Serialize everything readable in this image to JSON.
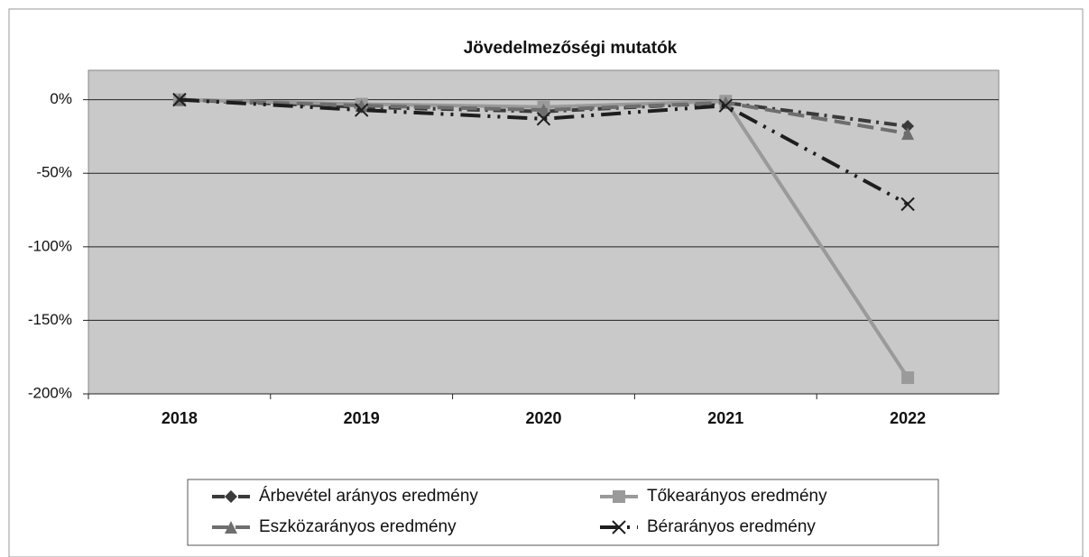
{
  "chart_data": {
    "type": "line",
    "title": "Jövedelmezőségi mutatók",
    "categories": [
      "2018",
      "2019",
      "2020",
      "2021",
      "2022"
    ],
    "series": [
      {
        "name": "Árbevétel arányos eredmény",
        "color": "#3a3a3a",
        "dash": "14 6 3 6",
        "marker": "diamond",
        "values": [
          0,
          -5,
          -8,
          -2,
          -18
        ]
      },
      {
        "name": "Tőkearányos eredmény",
        "color": "#9a9a9a",
        "dash": "none",
        "marker": "square",
        "values": [
          0,
          -3,
          -5,
          -1,
          -189
        ]
      },
      {
        "name": "Eszközarányos eredmény",
        "color": "#6e6e6e",
        "dash": "18 8",
        "marker": "triangle",
        "values": [
          0,
          -4,
          -7,
          -2,
          -23
        ]
      },
      {
        "name": "Bérarányos eredmény",
        "color": "#1e1e1e",
        "dash": "22 8 3 8 3 8",
        "marker": "cross",
        "values": [
          0,
          -7,
          -13,
          -4,
          -71
        ]
      }
    ],
    "ylim": [
      -200,
      20
    ],
    "yticks": [
      {
        "value": 0,
        "label": "0%"
      },
      {
        "value": -50,
        "label": "-50%"
      },
      {
        "value": -100,
        "label": "-100%"
      },
      {
        "value": -150,
        "label": "-150%"
      },
      {
        "value": -200,
        "label": "-200%"
      }
    ],
    "grid": true
  }
}
